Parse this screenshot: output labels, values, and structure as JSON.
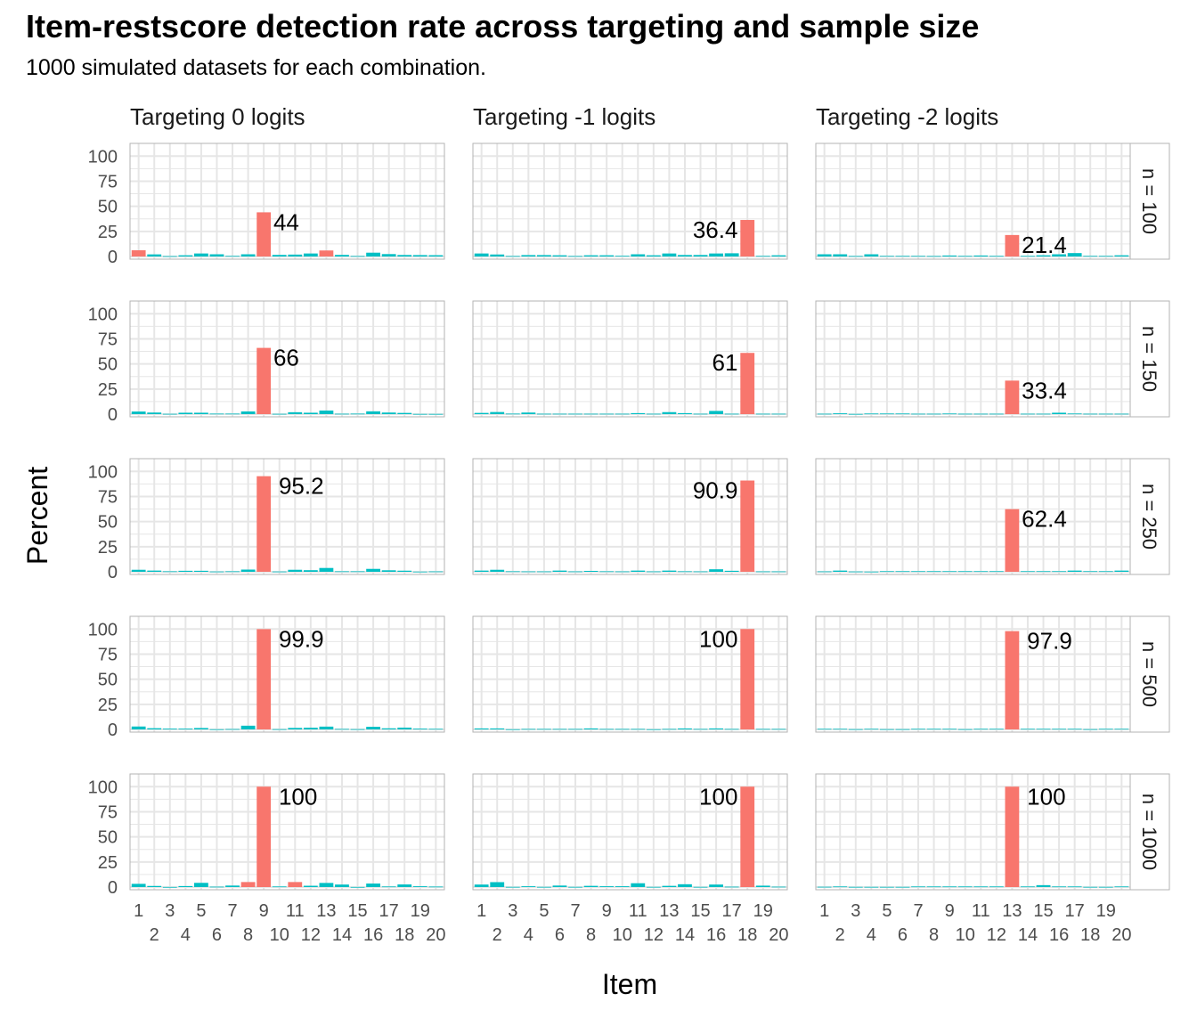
{
  "chart_data": {
    "type": "bar",
    "title": "Item-restscore detection rate across targeting and sample size",
    "subtitle": "1000 simulated datasets for each combination.",
    "xlabel": "Item",
    "ylabel": "Percent",
    "ylim": [
      0,
      110
    ],
    "y_ticks": [
      0,
      25,
      50,
      75,
      100
    ],
    "categories": [
      1,
      2,
      3,
      4,
      5,
      6,
      7,
      8,
      9,
      10,
      11,
      12,
      13,
      14,
      15,
      16,
      17,
      18,
      19,
      20
    ],
    "x_tick_labels_upper": [
      "1",
      "3",
      "5",
      "7",
      "9",
      "11",
      "13",
      "15",
      "17",
      "19"
    ],
    "x_tick_labels_lower": [
      "2",
      "4",
      "6",
      "8",
      "10",
      "12",
      "14",
      "16",
      "18",
      "20"
    ],
    "grid": true,
    "colors": {
      "targeted": "#F8766D",
      "other": "#00BFC4",
      "panel_border": "#b3b3b3",
      "grid": "#e6e6e6"
    },
    "columns": [
      "Targeting 0 logits",
      "Targeting -1 logits",
      "Targeting -2 logits"
    ],
    "rows": [
      "n = 100",
      "n = 150",
      "n = 250",
      "n = 500",
      "n = 1000"
    ],
    "panels": [
      [
        {
          "values": [
            6.2,
            2.1,
            0.4,
            1.2,
            3.0,
            2.2,
            0.6,
            2.2,
            44.0,
            1.6,
            1.9,
            3.0,
            6.0,
            1.6,
            0.5,
            3.8,
            2.4,
            1.5,
            1.4,
            1.3
          ],
          "red_items": [
            1,
            9,
            13
          ],
          "label_item": 9,
          "label": "44"
        },
        {
          "values": [
            2.6,
            1.6,
            0.3,
            1.4,
            1.4,
            0.5,
            0.5,
            2.7,
            66.0,
            0.3,
            1.9,
            1.4,
            3.6,
            0.4,
            0.5,
            2.8,
            1.6,
            1.2,
            0.2,
            0.2
          ],
          "red_items": [
            9
          ],
          "label_item": 9,
          "label": "66"
        },
        {
          "values": [
            2.0,
            1.2,
            0.5,
            1.0,
            1.0,
            0.3,
            0.5,
            2.2,
            95.2,
            0.3,
            2.0,
            1.6,
            3.8,
            0.5,
            0.5,
            2.9,
            1.5,
            1.1,
            0.2,
            0.4
          ],
          "red_items": [
            9
          ],
          "label_item": 9,
          "label": "95.2"
        },
        {
          "values": [
            2.9,
            1.2,
            0.8,
            0.8,
            1.4,
            0.2,
            0.4,
            3.7,
            99.9,
            0.3,
            1.5,
            1.7,
            2.8,
            0.5,
            0.3,
            2.6,
            1.1,
            1.8,
            0.8,
            0.6
          ],
          "red_items": [
            9
          ],
          "label_item": 9,
          "label": "99.9"
        },
        {
          "values": [
            3.2,
            1.1,
            0.1,
            1.0,
            4.2,
            0.4,
            1.5,
            5.0,
            100,
            0.6,
            5.0,
            1.3,
            4.1,
            2.5,
            0.1,
            3.5,
            0.6,
            2.6,
            0.8,
            0.5
          ],
          "red_items": [
            8,
            9,
            11
          ],
          "label_item": 9,
          "label": "100"
        }
      ],
      [
        {
          "values": [
            3.0,
            2.0,
            0.5,
            1.4,
            1.4,
            1.2,
            0.5,
            1.2,
            1.2,
            0.7,
            2.2,
            1.2,
            3.0,
            1.5,
            1.5,
            3.0,
            3.2,
            36.4,
            0.6,
            1.2
          ],
          "red_items": [
            18
          ],
          "label_item": 18,
          "label": "36.4"
        },
        {
          "values": [
            1.2,
            2.1,
            0.5,
            1.6,
            0.4,
            0.4,
            0.4,
            0.4,
            0.4,
            0.4,
            1.0,
            0.4,
            2.0,
            1.0,
            0.4,
            3.2,
            0.4,
            61.0,
            0.4,
            0.4
          ],
          "red_items": [
            18
          ],
          "label_item": 18,
          "label": "61"
        },
        {
          "values": [
            1.2,
            2.0,
            0.5,
            0.4,
            0.4,
            1.2,
            0.4,
            0.9,
            0.5,
            0.4,
            1.2,
            0.4,
            1.2,
            0.5,
            0.4,
            2.5,
            1.0,
            90.9,
            0.4,
            0.4
          ],
          "red_items": [
            18
          ],
          "label_item": 18,
          "label": "90.9"
        },
        {
          "values": [
            1.0,
            1.0,
            0.2,
            0.5,
            0.5,
            0.5,
            0.5,
            1.0,
            0.5,
            0.5,
            0.5,
            0.2,
            0.5,
            1.0,
            0.5,
            1.0,
            0.5,
            100,
            0.5,
            0.5
          ],
          "red_items": [
            18
          ],
          "label_item": 18,
          "label": "100"
        },
        {
          "values": [
            2.5,
            4.9,
            0.2,
            0.8,
            0.2,
            1.5,
            0.2,
            1.2,
            0.8,
            0.8,
            3.8,
            0.2,
            1.2,
            2.8,
            0.2,
            2.5,
            0.4,
            100,
            1.4,
            0.4
          ],
          "red_items": [
            18
          ],
          "label_item": 18,
          "label": "100"
        }
      ],
      [
        {
          "values": [
            2.2,
            2.2,
            0.5,
            2.2,
            0.6,
            0.6,
            0.6,
            0.5,
            1.0,
            0.6,
            1.0,
            0.6,
            21.4,
            0.6,
            1.2,
            2.2,
            3.4,
            0.6,
            0.6,
            1.2
          ],
          "red_items": [
            13
          ],
          "label_item": 13,
          "label": "21.4"
        },
        {
          "values": [
            0.4,
            0.8,
            0.2,
            0.6,
            0.6,
            0.6,
            0.4,
            0.4,
            0.6,
            0.4,
            0.4,
            0.4,
            33.4,
            0.4,
            0.4,
            1.4,
            0.6,
            0.4,
            0.4,
            0.4
          ],
          "red_items": [
            13
          ],
          "label_item": 13,
          "label": "33.4"
        },
        {
          "values": [
            0.4,
            1.2,
            0.3,
            0.2,
            0.6,
            0.6,
            0.6,
            0.6,
            0.6,
            0.6,
            0.6,
            0.6,
            62.4,
            0.6,
            0.6,
            0.6,
            1.2,
            0.6,
            0.6,
            1.2
          ],
          "red_items": [
            13
          ],
          "label_item": 13,
          "label": "62.4"
        },
        {
          "values": [
            0.6,
            0.6,
            0.3,
            0.6,
            0.3,
            0.3,
            0.6,
            0.6,
            0.6,
            0.3,
            0.6,
            0.6,
            97.9,
            0.6,
            0.6,
            0.6,
            0.6,
            0.3,
            0.6,
            0.6
          ],
          "red_items": [
            13
          ],
          "label_item": 13,
          "label": "97.9"
        },
        {
          "values": [
            0.3,
            0.6,
            0.2,
            0.2,
            0.2,
            0.2,
            0.6,
            0.6,
            0.6,
            0.6,
            0.6,
            0.6,
            100,
            0.6,
            1.9,
            0.6,
            0.6,
            0.2,
            0.2,
            0.6
          ],
          "red_items": [
            13
          ],
          "label_item": 13,
          "label": "100"
        }
      ]
    ]
  }
}
